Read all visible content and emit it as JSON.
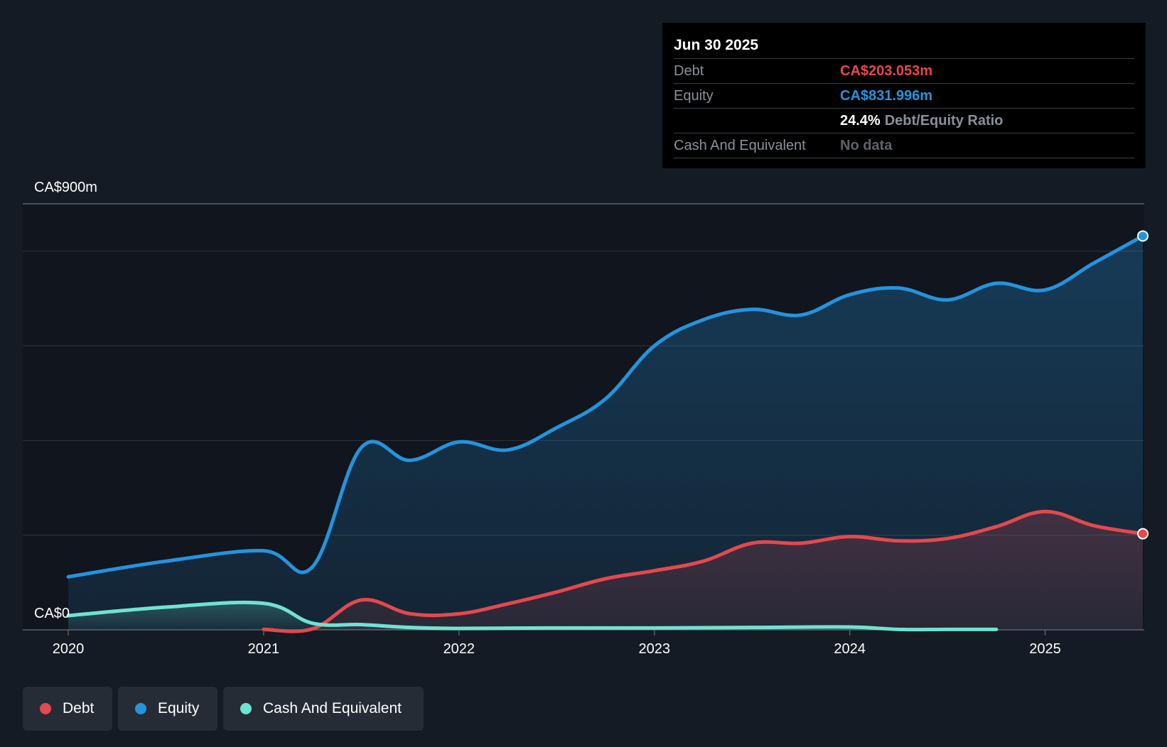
{
  "chart_data": {
    "type": "area",
    "title": "",
    "y_max_label": "CA$900m",
    "y_min_label": "CA$0",
    "ylim": [
      0,
      900
    ],
    "xlim": [
      2020,
      2025.5
    ],
    "x_ticks": [
      2020,
      2021,
      2022,
      2023,
      2024,
      2025
    ],
    "x_tick_labels": [
      "2020",
      "2021",
      "2022",
      "2023",
      "2024",
      "2025"
    ],
    "y_gridlines": [
      0,
      200,
      400,
      600,
      800,
      900
    ],
    "grid": true,
    "legend_position": "bottom-left",
    "series": [
      {
        "name": "Equity",
        "color": "#2394df",
        "points": [
          [
            2020.0,
            112
          ],
          [
            2020.5,
            145
          ],
          [
            2021.0,
            167
          ],
          [
            2021.25,
            133
          ],
          [
            2021.5,
            385
          ],
          [
            2021.75,
            358
          ],
          [
            2022.0,
            397
          ],
          [
            2022.25,
            380
          ],
          [
            2022.5,
            427
          ],
          [
            2022.75,
            488
          ],
          [
            2023.0,
            600
          ],
          [
            2023.25,
            655
          ],
          [
            2023.5,
            677
          ],
          [
            2023.75,
            665
          ],
          [
            2024.0,
            708
          ],
          [
            2024.25,
            722
          ],
          [
            2024.5,
            697
          ],
          [
            2024.75,
            732
          ],
          [
            2025.0,
            718
          ],
          [
            2025.25,
            775
          ],
          [
            2025.5,
            832
          ]
        ],
        "last_value_label": "CA$831.996m"
      },
      {
        "name": "Debt",
        "color": "#e5484d",
        "points": [
          [
            2021.0,
            1
          ],
          [
            2021.25,
            2
          ],
          [
            2021.5,
            63
          ],
          [
            2021.75,
            34
          ],
          [
            2022.0,
            34
          ],
          [
            2022.25,
            55
          ],
          [
            2022.5,
            80
          ],
          [
            2022.75,
            108
          ],
          [
            2023.0,
            125
          ],
          [
            2023.25,
            145
          ],
          [
            2023.5,
            183
          ],
          [
            2023.75,
            183
          ],
          [
            2024.0,
            197
          ],
          [
            2024.25,
            188
          ],
          [
            2024.5,
            193
          ],
          [
            2024.75,
            218
          ],
          [
            2025.0,
            250
          ],
          [
            2025.25,
            220
          ],
          [
            2025.5,
            203
          ]
        ],
        "last_value_label": "CA$203.053m"
      },
      {
        "name": "Cash And Equivalent",
        "color": "#6fe3d3",
        "points": [
          [
            2020.0,
            30
          ],
          [
            2020.5,
            48
          ],
          [
            2021.0,
            56
          ],
          [
            2021.25,
            14
          ],
          [
            2021.5,
            11
          ],
          [
            2021.75,
            5
          ],
          [
            2022.0,
            3
          ],
          [
            2022.5,
            4
          ],
          [
            2023.0,
            4
          ],
          [
            2023.5,
            5
          ],
          [
            2024.0,
            6
          ],
          [
            2024.25,
            1
          ],
          [
            2024.5,
            1
          ],
          [
            2024.75,
            1
          ]
        ]
      }
    ]
  },
  "tooltip": {
    "date": "Jun 30 2025",
    "debt_label": "Debt",
    "debt_value": "CA$203.053m",
    "equity_label": "Equity",
    "equity_value": "CA$831.996m",
    "ratio_value": "24.4%",
    "ratio_label": "Debt/Equity Ratio",
    "cash_label": "Cash And Equivalent",
    "cash_value": "No data"
  },
  "legend": {
    "debt": {
      "label": "Debt",
      "color": "#e5484d"
    },
    "equity": {
      "label": "Equity",
      "color": "#2394df"
    },
    "cash": {
      "label": "Cash And Equivalent",
      "color": "#6fe3d3"
    }
  }
}
